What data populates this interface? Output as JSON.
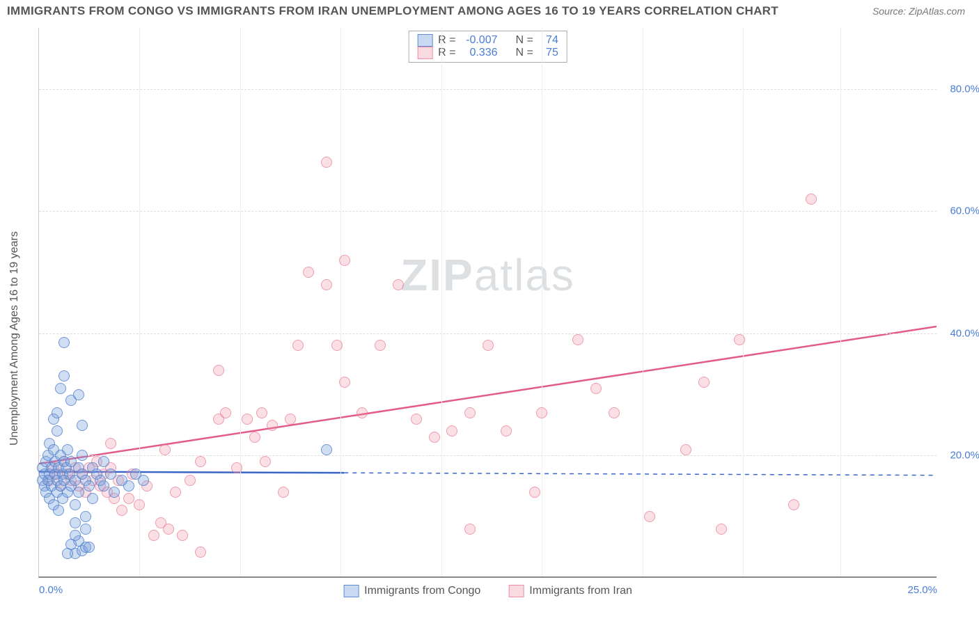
{
  "title": "IMMIGRANTS FROM CONGO VS IMMIGRANTS FROM IRAN UNEMPLOYMENT AMONG AGES 16 TO 19 YEARS CORRELATION CHART",
  "source": "Source: ZipAtlas.com",
  "y_axis_label": "Unemployment Among Ages 16 to 19 years",
  "watermark_bold": "ZIP",
  "watermark_light": "atlas",
  "chart": {
    "type": "scatter",
    "xlim": [
      0,
      25
    ],
    "ylim": [
      0,
      90
    ],
    "yticks": [
      20,
      40,
      60,
      80
    ],
    "ytick_labels": [
      "20.0%",
      "40.0%",
      "60.0%",
      "80.0%"
    ],
    "xticks": [
      0,
      25
    ],
    "xtick_labels": [
      "0.0%",
      "25.0%"
    ],
    "grid_v_at": [
      2.8,
      5.6,
      8.4,
      11.2,
      14.0,
      16.8,
      19.6,
      22.3
    ],
    "background_color": "#ffffff",
    "grid_color": "#dddddd",
    "tick_color": "#4a7dd8",
    "series": {
      "congo": {
        "label": "Immigrants from Congo",
        "color_fill": "rgba(120,160,220,0.35)",
        "color_stroke": "rgba(70,120,200,0.7)",
        "r": "-0.007",
        "n": "74",
        "trend": {
          "x1": 0,
          "y1": 17.2,
          "x2": 8.5,
          "y2": 17.0,
          "dash_x2": 25,
          "dash_y2": 16.6,
          "color": "#3a66c7",
          "width": 2.5
        },
        "points": [
          [
            0.1,
            16
          ],
          [
            0.1,
            18
          ],
          [
            0.15,
            15
          ],
          [
            0.15,
            17
          ],
          [
            0.2,
            19
          ],
          [
            0.2,
            14
          ],
          [
            0.25,
            20
          ],
          [
            0.25,
            16
          ],
          [
            0.3,
            22
          ],
          [
            0.3,
            13
          ],
          [
            0.3,
            17
          ],
          [
            0.35,
            18
          ],
          [
            0.35,
            15
          ],
          [
            0.4,
            21
          ],
          [
            0.4,
            12
          ],
          [
            0.45,
            19
          ],
          [
            0.45,
            17
          ],
          [
            0.5,
            24
          ],
          [
            0.5,
            14
          ],
          [
            0.5,
            16
          ],
          [
            0.55,
            18
          ],
          [
            0.55,
            11
          ],
          [
            0.6,
            20
          ],
          [
            0.6,
            15
          ],
          [
            0.65,
            17
          ],
          [
            0.65,
            13
          ],
          [
            0.7,
            19
          ],
          [
            0.7,
            16
          ],
          [
            0.75,
            18
          ],
          [
            0.8,
            14
          ],
          [
            0.8,
            21
          ],
          [
            0.85,
            17
          ],
          [
            0.9,
            15
          ],
          [
            0.9,
            19
          ],
          [
            1.0,
            16
          ],
          [
            1.0,
            12
          ],
          [
            1.0,
            9
          ],
          [
            1.1,
            18
          ],
          [
            1.1,
            14
          ],
          [
            1.2,
            17
          ],
          [
            1.2,
            20
          ],
          [
            1.3,
            16
          ],
          [
            1.3,
            10
          ],
          [
            1.4,
            15
          ],
          [
            1.5,
            18
          ],
          [
            1.5,
            13
          ],
          [
            1.6,
            17
          ],
          [
            1.7,
            16
          ],
          [
            1.8,
            15
          ],
          [
            1.8,
            19
          ],
          [
            1.0,
            4
          ],
          [
            1.2,
            4.5
          ],
          [
            0.8,
            4
          ],
          [
            1.3,
            5
          ],
          [
            1.1,
            6
          ],
          [
            0.9,
            5.5
          ],
          [
            1.4,
            5
          ],
          [
            0.9,
            29
          ],
          [
            0.6,
            31
          ],
          [
            0.7,
            33
          ],
          [
            1.1,
            30
          ],
          [
            0.7,
            38.5
          ],
          [
            0.4,
            26
          ],
          [
            0.5,
            27
          ],
          [
            1.2,
            25
          ],
          [
            2.0,
            17
          ],
          [
            2.1,
            14
          ],
          [
            2.3,
            16
          ],
          [
            2.5,
            15
          ],
          [
            2.7,
            17
          ],
          [
            2.9,
            16
          ],
          [
            8.0,
            21
          ],
          [
            1.0,
            7
          ],
          [
            1.3,
            8
          ]
        ]
      },
      "iran": {
        "label": "Immigrants from Iran",
        "color_fill": "rgba(240,150,170,0.3)",
        "color_stroke": "rgba(230,110,140,0.6)",
        "r": "0.336",
        "n": "75",
        "trend": {
          "x1": 0,
          "y1": 18.5,
          "x2": 25,
          "y2": 41,
          "color": "#e35a8c",
          "width": 2.5
        },
        "points": [
          [
            0.3,
            16
          ],
          [
            0.4,
            18
          ],
          [
            0.5,
            17
          ],
          [
            0.6,
            15
          ],
          [
            0.7,
            19
          ],
          [
            0.8,
            17
          ],
          [
            0.9,
            16
          ],
          [
            1.0,
            18
          ],
          [
            1.1,
            15
          ],
          [
            1.2,
            17
          ],
          [
            1.3,
            14
          ],
          [
            1.4,
            18
          ],
          [
            1.5,
            16
          ],
          [
            1.6,
            19
          ],
          [
            1.7,
            15
          ],
          [
            1.8,
            17
          ],
          [
            1.9,
            14
          ],
          [
            2.0,
            18
          ],
          [
            2.1,
            13
          ],
          [
            2.2,
            16
          ],
          [
            2.3,
            11
          ],
          [
            2.5,
            13
          ],
          [
            2.6,
            17
          ],
          [
            2.8,
            12
          ],
          [
            3.0,
            15
          ],
          [
            3.2,
            7
          ],
          [
            3.4,
            9
          ],
          [
            3.6,
            8
          ],
          [
            3.8,
            14
          ],
          [
            4.0,
            7
          ],
          [
            4.2,
            16
          ],
          [
            4.5,
            4.2
          ],
          [
            5.0,
            26
          ],
          [
            5.2,
            27
          ],
          [
            5.0,
            34
          ],
          [
            5.8,
            26
          ],
          [
            6.0,
            23
          ],
          [
            6.2,
            27
          ],
          [
            6.5,
            25
          ],
          [
            6.8,
            14
          ],
          [
            7.0,
            26
          ],
          [
            7.2,
            38
          ],
          [
            7.5,
            50
          ],
          [
            8.0,
            48
          ],
          [
            8.5,
            52
          ],
          [
            8.0,
            68
          ],
          [
            8.3,
            38
          ],
          [
            8.5,
            32
          ],
          [
            9.0,
            27
          ],
          [
            9.5,
            38
          ],
          [
            10.0,
            48
          ],
          [
            10.5,
            26
          ],
          [
            11.0,
            23
          ],
          [
            11.5,
            24
          ],
          [
            12.0,
            8
          ],
          [
            12.0,
            27
          ],
          [
            12.5,
            38
          ],
          [
            13.0,
            24
          ],
          [
            13.8,
            14
          ],
          [
            14.0,
            27
          ],
          [
            15.0,
            39
          ],
          [
            15.5,
            31
          ],
          [
            16.0,
            27
          ],
          [
            17.0,
            10
          ],
          [
            18.0,
            21
          ],
          [
            18.5,
            32
          ],
          [
            19.0,
            8
          ],
          [
            19.5,
            39
          ],
          [
            21.0,
            12
          ],
          [
            21.5,
            62
          ],
          [
            2.0,
            22
          ],
          [
            3.5,
            21
          ],
          [
            4.5,
            19
          ],
          [
            5.5,
            18
          ],
          [
            6.3,
            19
          ]
        ]
      }
    }
  },
  "legend_top": {
    "r_label": "R =",
    "n_label": "N ="
  }
}
